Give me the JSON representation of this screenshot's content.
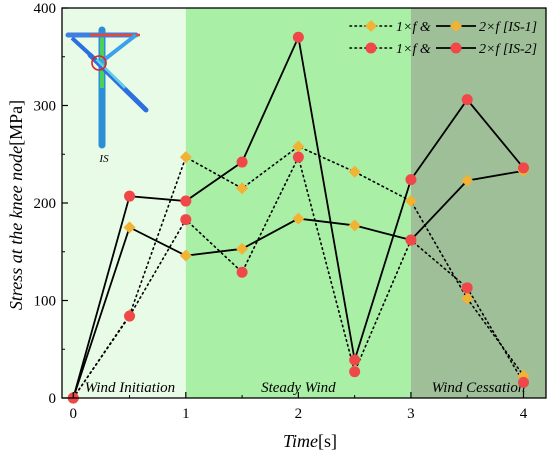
{
  "chart_data": {
    "type": "line",
    "xlabel": "Time",
    "xunit": "[s]",
    "ylabel": "Stress at the knee node",
    "yunit": "[MPa]",
    "xlim": [
      -0.1,
      4.2
    ],
    "ylim": [
      0,
      400
    ],
    "xticks": [
      0,
      1,
      2,
      3,
      4
    ],
    "yticks": [
      0,
      100,
      200,
      300,
      400
    ],
    "regions": [
      {
        "label": "Wind Initiation",
        "x0": -0.1,
        "x1": 1,
        "color": "#e8fbe6"
      },
      {
        "label": "Steady Wind",
        "x0": 1,
        "x1": 3,
        "color": "#a9efa6"
      },
      {
        "label": "Wind Cessation",
        "x0": 3,
        "x1": 4.2,
        "color": "#9fbf99"
      }
    ],
    "x": [
      0,
      0.5,
      1,
      1.5,
      2,
      2.5,
      3,
      3.5,
      4
    ],
    "series": [
      {
        "group": "IS-1",
        "freq": "1×f",
        "style": "dotted",
        "marker": "diamond",
        "color": "#f2b233",
        "values": [
          0,
          85,
          247,
          215,
          258,
          232,
          202,
          102,
          23
        ]
      },
      {
        "group": "IS-1",
        "freq": "2×f",
        "style": "solid",
        "marker": "diamond",
        "color": "#f2b233",
        "values": [
          0,
          175,
          146,
          153,
          184,
          177,
          162,
          223,
          233
        ]
      },
      {
        "group": "IS-2",
        "freq": "1×f",
        "style": "dotted",
        "marker": "circle",
        "color": "#f04848",
        "values": [
          0,
          84,
          183,
          129,
          247,
          27,
          162,
          113,
          16
        ]
      },
      {
        "group": "IS-2",
        "freq": "2×f",
        "style": "solid",
        "marker": "circle",
        "color": "#f04848",
        "values": [
          0,
          207,
          202,
          242,
          370,
          39,
          224,
          306,
          236
        ]
      }
    ],
    "legend": {
      "position": "top-right",
      "entries": [
        {
          "label1": "1×f & ",
          "label2": "2×f",
          "label3": "[IS-1]",
          "marker": "diamond"
        },
        {
          "label1": "1×f & ",
          "label2": "2×f",
          "label3": "[IS-2]",
          "marker": "circle"
        }
      ]
    },
    "inset": {
      "label": "IS",
      "position": "top-left"
    }
  }
}
